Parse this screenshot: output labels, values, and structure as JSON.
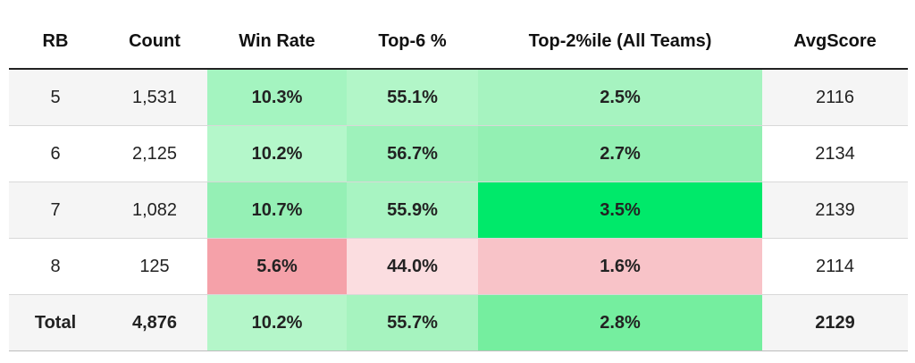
{
  "headers": {
    "rb": "RB",
    "count": "Count",
    "win_rate": "Win Rate",
    "top6": "Top-6 %",
    "top2": "Top-2%ile (All Teams)",
    "avg": "AvgScore"
  },
  "rows": [
    {
      "rb": "5",
      "count": "1,531",
      "win_rate": "10.3%",
      "top6": "55.1%",
      "top2": "2.5%",
      "avg": "2116"
    },
    {
      "rb": "6",
      "count": "2,125",
      "win_rate": "10.2%",
      "top6": "56.7%",
      "top2": "2.7%",
      "avg": "2134"
    },
    {
      "rb": "7",
      "count": "1,082",
      "win_rate": "10.7%",
      "top6": "55.9%",
      "top2": "3.5%",
      "avg": "2139"
    },
    {
      "rb": "8",
      "count": "125",
      "win_rate": "5.6%",
      "top6": "44.0%",
      "top2": "1.6%",
      "avg": "2114"
    }
  ],
  "total": {
    "rb": "Total",
    "count": "4,876",
    "win_rate": "10.2%",
    "top6": "55.7%",
    "top2": "2.8%",
    "avg": "2129"
  },
  "cell_colors": {
    "row0": {
      "win_rate": "#a4f4c0",
      "top6": "#b2f6c8",
      "top2": "#a6f3c0"
    },
    "row1": {
      "win_rate": "#b4f7ca",
      "top6": "#9ef2bb",
      "top2": "#93f0b3"
    },
    "row2": {
      "win_rate": "#95f0b5",
      "top6": "#a8f4c2",
      "top2": "#00e96a"
    },
    "row3": {
      "win_rate": "#f5a1a9",
      "top6": "#fbdde0",
      "top2": "#f8c3c8"
    },
    "total": {
      "win_rate": "#b4f6c9",
      "top6": "#a6f3bf",
      "top2": "#75ee9f"
    }
  }
}
